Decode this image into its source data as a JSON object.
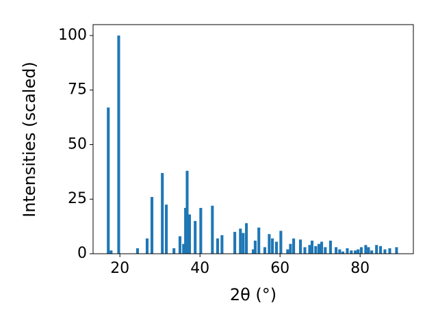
{
  "chart_data": {
    "type": "bar",
    "xlabel": "2θ (°)",
    "ylabel": "Intensities (scaled)",
    "color": "#1f77b4",
    "x": [
      17.1,
      17.8,
      19.7,
      24.4,
      26.8,
      28.0,
      30.6,
      31.6,
      33.5,
      35.0,
      35.9,
      36.4,
      36.8,
      37.4,
      38.8,
      40.2,
      43.1,
      44.4,
      45.5,
      48.7,
      50.1,
      50.8,
      51.6,
      53.3,
      53.8,
      54.7,
      56.2,
      57.3,
      58.1,
      59.1,
      60.2,
      61.9,
      62.6,
      63.4,
      65.1,
      66.2,
      67.4,
      68.0,
      68.9,
      69.7,
      70.4,
      71.3,
      72.6,
      74.0,
      74.9,
      75.7,
      76.8,
      77.8,
      78.8,
      79.5,
      80.3,
      81.4,
      82.1,
      82.9,
      84.1,
      85.1,
      86.2,
      87.4,
      89.1
    ],
    "values": [
      67,
      1.5,
      100,
      2.5,
      7,
      26,
      37,
      22.5,
      2.5,
      8,
      4.5,
      21,
      38,
      18,
      15,
      21,
      22,
      7,
      8.5,
      10,
      11.5,
      9.5,
      14,
      2,
      6,
      12,
      3,
      9,
      7,
      5.5,
      10.5,
      2,
      4.5,
      7,
      6.5,
      3,
      4,
      6,
      3.5,
      4.5,
      5.5,
      3,
      6,
      3,
      2,
      1,
      2.5,
      1.5,
      1.5,
      2,
      3,
      4,
      3,
      1.5,
      4,
      3.5,
      2,
      2.5,
      3
    ],
    "xlim": [
      13.3,
      93.3
    ],
    "ylim": [
      0,
      105
    ],
    "xticks": [
      20,
      40,
      60,
      80
    ],
    "yticks": [
      0,
      25,
      50,
      75,
      100
    ]
  }
}
